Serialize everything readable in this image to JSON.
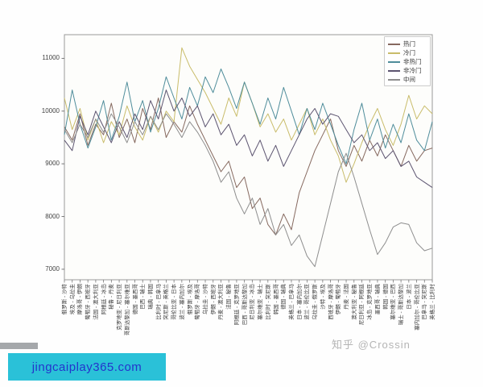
{
  "page": {
    "watermark_zhihu": "知乎 @Crossin",
    "watermark_site": "jingcaiplay365.com"
  },
  "chart_data": {
    "type": "line",
    "title": "",
    "xlabel": "",
    "ylabel": "",
    "grid": false,
    "legend_position": "upper right",
    "ylim": [
      6800,
      11450
    ],
    "yticks": [
      7000,
      8000,
      9000,
      10000,
      11000
    ],
    "categories": [
      "俄罗斯 - 沙特",
      "埃及 - 乌拉圭",
      "摩洛哥 - 伊朗",
      "葡萄牙 - 西班牙",
      "法国 - 澳大利亚",
      "阿根廷 - 冰岛",
      "秘鲁 - 丹麦",
      "克罗地亚 - 尼日利亚",
      "哥斯达黎加 - 塞尔维亚",
      "德国 - 墨西哥",
      "巴西 - 瑞士",
      "瑞典 - 韩国",
      "比利时 - 巴拿马",
      "突尼斯 - 英格兰",
      "哥伦比亚 - 日本",
      "波兰 - 塞内加尔",
      "俄罗斯 - 埃及",
      "葡萄牙 - 摩洛哥",
      "乌拉圭 - 沙特",
      "伊朗 - 西班牙",
      "丹麦 - 澳大利亚",
      "法国 - 秘鲁",
      "阿根廷 - 克罗地亚",
      "巴西 - 哥斯达黎加",
      "尼日利亚 - 冰岛",
      "塞尔维亚 - 瑞士",
      "比利时 - 突尼斯",
      "韩国 - 墨西哥",
      "德国 - 瑞典",
      "英格兰 - 巴拿马",
      "日本 - 塞内加尔",
      "波兰 - 哥伦比亚",
      "乌拉圭 - 俄罗斯",
      "沙特 - 埃及",
      "西班牙 - 摩洛哥",
      "伊朗 - 葡萄牙",
      "丹麦 - 法国",
      "澳大利亚 - 秘鲁",
      "尼日利亚 - 阿根廷",
      "冰岛 - 克罗地亚",
      "墨西哥 - 瑞典",
      "韩国 - 德国",
      "塞尔维亚 - 巴西",
      "瑞士 - 哥斯达黎加",
      "日本 - 波兰",
      "塞内加尔 - 哥伦比亚",
      "巴拿马 - 突尼斯",
      "英格兰 - 比利时"
    ],
    "series": [
      {
        "name": "热门",
        "color": "#86695f",
        "values": [
          9700,
          9450,
          9950,
          9350,
          9750,
          9550,
          10150,
          9500,
          9850,
          9400,
          10050,
          9650,
          10250,
          9500,
          9800,
          9600,
          10100,
          9750,
          9450,
          9150,
          8850,
          9050,
          8550,
          8750,
          8150,
          8350,
          7850,
          7650,
          8050,
          7750,
          8450,
          8850,
          9250,
          9550,
          9850,
          9250,
          8950,
          9350,
          9050,
          9450,
          9150,
          9550,
          9250,
          8950,
          9350,
          9050,
          9250,
          9300
        ]
      },
      {
        "name": "冷门",
        "color": "#c9bc6a",
        "values": [
          10250,
          9650,
          10050,
          9450,
          9850,
          9400,
          9800,
          9550,
          10100,
          9700,
          9450,
          9900,
          9600,
          10000,
          9800,
          11200,
          10850,
          10600,
          10350,
          10050,
          9750,
          10250,
          9900,
          10550,
          10150,
          9700,
          9950,
          9600,
          9850,
          9450,
          9750,
          10050,
          9550,
          9850,
          9450,
          9150,
          8650,
          9000,
          9400,
          9750,
          10050,
          9650,
          9350,
          9750,
          10300,
          9850,
          10100,
          9950
        ]
      },
      {
        "name": "非热门",
        "color": "#4f8d9b",
        "values": [
          9550,
          10400,
          9750,
          9300,
          9700,
          10200,
          9450,
          9900,
          10550,
          9800,
          10200,
          9600,
          10050,
          10650,
          10250,
          9850,
          10450,
          10100,
          10650,
          10350,
          10800,
          10450,
          10050,
          10550,
          10150,
          9750,
          10250,
          9850,
          10450,
          10000,
          9550,
          10050,
          9650,
          10150,
          9750,
          9350,
          9000,
          9650,
          10150,
          9450,
          9850,
          9300,
          9750,
          9400,
          9950,
          9450,
          9250,
          9800
        ]
      },
      {
        "name": "非冷门",
        "color": "#5c5470",
        "values": [
          9450,
          9250,
          9900,
          9550,
          10000,
          9700,
          9400,
          9800,
          9500,
          9950,
          9650,
          10200,
          9850,
          10400,
          10000,
          10250,
          9900,
          10100,
          9700,
          9950,
          9550,
          9750,
          9350,
          9550,
          9150,
          9450,
          9050,
          9350,
          8950,
          9250,
          9550,
          9850,
          10050,
          9750,
          9950,
          9900,
          9650,
          9400,
          9550,
          9250,
          9400,
          9100,
          9250,
          8950,
          9050,
          8750,
          8650,
          8550
        ]
      },
      {
        "name": "中间",
        "color": "#8e8e8e",
        "values": [
          9650,
          9400,
          9750,
          9500,
          9850,
          9600,
          9950,
          9700,
          9400,
          9800,
          9550,
          9900,
          9650,
          9950,
          9750,
          9500,
          9800,
          9600,
          9350,
          9050,
          8650,
          8850,
          8350,
          8050,
          8350,
          7850,
          8150,
          7650,
          7850,
          7450,
          7650,
          7250,
          7050,
          7650,
          8250,
          8850,
          9200,
          8750,
          8250,
          7750,
          7280,
          7500,
          7800,
          7880,
          7850,
          7500,
          7350,
          7400
        ]
      }
    ]
  }
}
